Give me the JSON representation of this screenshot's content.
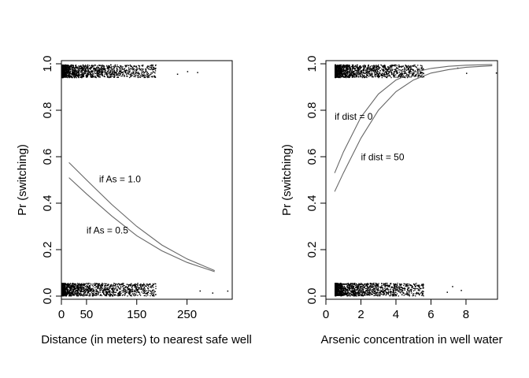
{
  "chart_data": [
    {
      "type": "line",
      "xlabel": "Distance (in meters) to nearest safe well",
      "ylabel": "Pr (switching)",
      "xlim": [
        0,
        340
      ],
      "ylim": [
        0,
        1
      ],
      "xticks": [
        0,
        50,
        150,
        250
      ],
      "xtick_labels": [
        "0",
        "50",
        "150",
        "250"
      ],
      "yticks": [
        0.0,
        0.2,
        0.4,
        0.6,
        0.8,
        1.0
      ],
      "ytick_labels": [
        "0.0",
        "0.2",
        "0.4",
        "0.6",
        "0.8",
        "1.0"
      ],
      "series": [
        {
          "name": "if As = 1.0",
          "x": [
            15,
            50,
            100,
            150,
            200,
            250,
            305
          ],
          "y": [
            0.575,
            0.5,
            0.395,
            0.3,
            0.22,
            0.16,
            0.11
          ]
        },
        {
          "name": "if As = 0.5",
          "x": [
            15,
            50,
            100,
            150,
            200,
            250,
            305
          ],
          "y": [
            0.51,
            0.44,
            0.345,
            0.26,
            0.195,
            0.145,
            0.105
          ]
        }
      ],
      "annotations": [
        {
          "text": "if As = 1.0",
          "x": 75,
          "y": 0.49
        },
        {
          "text": "if As = 0.5",
          "x": 50,
          "y": 0.27
        }
      ],
      "jitter_rug": {
        "bands": [
          0.97,
          0.03
        ],
        "x_range": [
          0,
          340
        ],
        "points_per_band": 1400,
        "sparse_points_top": [
          230,
          250,
          270
        ],
        "sparse_points_bottom": [
          275,
          300,
          330
        ]
      },
      "line_color": "#666666",
      "point_color": "#000000"
    },
    {
      "type": "line",
      "xlabel": "Arsenic concentration in well water",
      "ylabel": "Pr (switching)",
      "xlim": [
        0,
        9.8
      ],
      "ylim": [
        0,
        1
      ],
      "xticks": [
        0,
        2,
        4,
        6,
        8
      ],
      "xtick_labels": [
        "0",
        "2",
        "4",
        "6",
        "8"
      ],
      "yticks": [
        0.0,
        0.2,
        0.4,
        0.6,
        0.8,
        1.0
      ],
      "ytick_labels": [
        "0.0",
        "0.2",
        "0.4",
        "0.6",
        "0.8",
        "1.0"
      ],
      "series": [
        {
          "name": "if dist = 0",
          "x": [
            0.5,
            1,
            2,
            3,
            4,
            5,
            6,
            7,
            8,
            9.5
          ],
          "y": [
            0.53,
            0.62,
            0.77,
            0.87,
            0.93,
            0.963,
            0.98,
            0.989,
            0.994,
            0.997
          ]
        },
        {
          "name": "if dist = 50",
          "x": [
            0.5,
            1,
            2,
            3,
            4,
            5,
            6,
            7,
            8,
            9.5
          ],
          "y": [
            0.45,
            0.53,
            0.68,
            0.8,
            0.88,
            0.93,
            0.96,
            0.975,
            0.985,
            0.992
          ]
        }
      ],
      "annotations": [
        {
          "text": "if dist = 0",
          "x": 0.5,
          "y": 0.76
        },
        {
          "text": "if dist = 50",
          "x": 2.0,
          "y": 0.585
        }
      ],
      "jitter_rug": {
        "bands": [
          0.97,
          0.03
        ],
        "x_range": [
          0.5,
          9.7
        ],
        "points_per_band": 1400,
        "sparse_points_top": [
          7.5,
          8.0,
          9.7
        ],
        "sparse_points_bottom": [
          6.9,
          7.2,
          7.7
        ]
      },
      "line_color": "#666666",
      "point_color": "#000000"
    }
  ]
}
